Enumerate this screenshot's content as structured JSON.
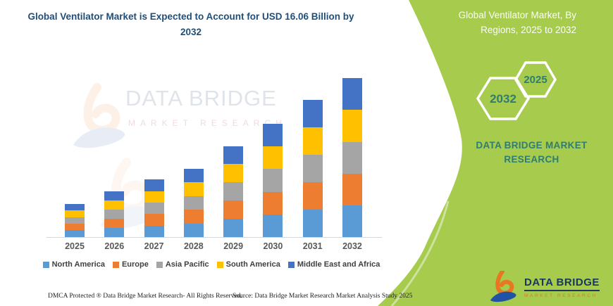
{
  "title": {
    "text": "Global Ventilator Market is Expected to Account for USD 16.06 Billion by 2032",
    "color": "#1F4E79"
  },
  "side_panel": {
    "background_color": "#A6CB4D",
    "heading": "Global Ventilator Market, By Regions, 2025 to 2032",
    "hexagons": [
      {
        "label": "2032"
      },
      {
        "label": "2025"
      }
    ],
    "brand_text": "DATA BRIDGE MARKET RESEARCH",
    "text_color": "#2F7D72",
    "logo": {
      "name": "DATA BRIDGE",
      "tagline": "MARKET RESEARCH"
    }
  },
  "watermark": {
    "line1": "DATA BRIDGE",
    "line2": "MARKET RESEARCH"
  },
  "chart_data": {
    "type": "bar",
    "stacked": true,
    "title": "Global Ventilator Market is Expected to Account for USD 16.06 Billion by 2032",
    "value_unit": "USD Billion",
    "categories": [
      "2025",
      "2026",
      "2027",
      "2028",
      "2029",
      "2030",
      "2031",
      "2032"
    ],
    "series": [
      {
        "name": "North America",
        "color": "#5B9BD5",
        "values": [
          0.68,
          0.94,
          1.17,
          1.38,
          1.85,
          2.28,
          2.76,
          3.2
        ]
      },
      {
        "name": "Europe",
        "color": "#ED7D31",
        "values": [
          0.67,
          0.92,
          1.16,
          1.39,
          1.84,
          2.3,
          2.78,
          3.22
        ]
      },
      {
        "name": "Asia Pacific",
        "color": "#A5A5A5",
        "values": [
          0.66,
          0.91,
          1.15,
          1.37,
          1.83,
          2.29,
          2.77,
          3.2
        ]
      },
      {
        "name": "South America",
        "color": "#FFC000",
        "values": [
          0.67,
          0.92,
          1.16,
          1.38,
          1.85,
          2.31,
          2.79,
          3.24
        ]
      },
      {
        "name": "Middle East and Africa",
        "color": "#4472C4",
        "values": [
          0.67,
          0.91,
          1.16,
          1.38,
          1.83,
          2.27,
          2.75,
          3.2
        ]
      }
    ],
    "totals": [
      3.35,
      4.6,
      5.8,
      6.9,
      9.2,
      11.45,
      13.85,
      16.06
    ],
    "ylim": [
      0,
      16.06
    ],
    "grid": false,
    "y_axis_visible": false,
    "legend_position": "bottom"
  },
  "footer": {
    "dmca": "DMCA Protected ® Data Bridge Market Research-  All Rights Reserved.",
    "source": "Source: Data Bridge Market Research  Market Analysis Study 2025"
  }
}
